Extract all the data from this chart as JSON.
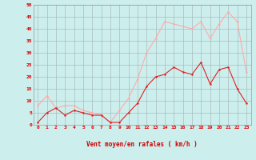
{
  "background_color": "#cceeed",
  "grid_color": "#aabbbb",
  "line1_color": "#dd2222",
  "line2_color": "#ffaaaa",
  "xlabel": "Vent moyen/en rafales ( km/h )",
  "xlabel_color": "#cc0000",
  "tick_color": "#dd0000",
  "ylim": [
    0,
    50
  ],
  "yticks": [
    0,
    5,
    10,
    15,
    20,
    25,
    30,
    35,
    40,
    45,
    50
  ],
  "xticks": [
    0,
    1,
    2,
    3,
    4,
    5,
    6,
    7,
    8,
    9,
    10,
    11,
    12,
    13,
    14,
    15,
    16,
    17,
    18,
    19,
    20,
    21,
    22,
    23
  ],
  "mean_wind": [
    1,
    5,
    7,
    4,
    6,
    5,
    4,
    4,
    1,
    1,
    5,
    9,
    16,
    20,
    21,
    24,
    22,
    21,
    26,
    17,
    23,
    24,
    15,
    9
  ],
  "gust_wind": [
    8,
    12,
    7,
    8,
    8,
    6,
    5,
    4,
    1,
    6,
    11,
    19,
    30,
    36,
    43,
    42,
    41,
    40,
    43,
    36,
    42,
    47,
    43,
    22
  ]
}
